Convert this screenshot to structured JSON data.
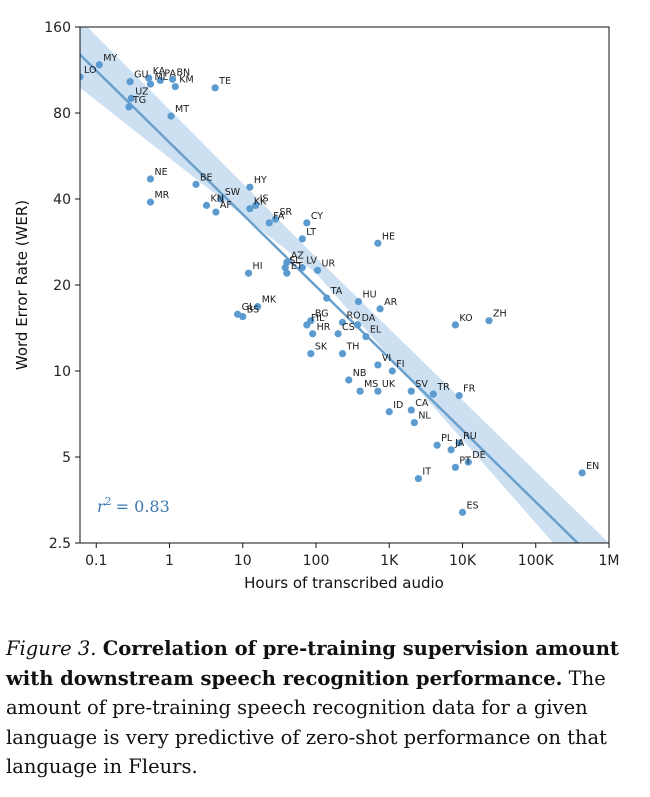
{
  "chart_data": {
    "type": "scatter",
    "xlabel": "Hours of transcribed audio",
    "ylabel": "Word Error Rate (WER)",
    "x_scale": "log",
    "y_scale": "log",
    "xlim": [
      0.06,
      1000000
    ],
    "ylim": [
      2.5,
      160
    ],
    "x_ticks": [
      {
        "value": 0.1,
        "label": "0.1"
      },
      {
        "value": 1,
        "label": "1"
      },
      {
        "value": 10,
        "label": "10"
      },
      {
        "value": 100,
        "label": "100"
      },
      {
        "value": 1000,
        "label": "1K"
      },
      {
        "value": 10000,
        "label": "10K"
      },
      {
        "value": 100000,
        "label": "100K"
      },
      {
        "value": 1000000,
        "label": "1M"
      }
    ],
    "y_ticks": [
      {
        "value": 2.5,
        "label": "2.5"
      },
      {
        "value": 5,
        "label": "5"
      },
      {
        "value": 10,
        "label": "10"
      },
      {
        "value": 20,
        "label": "20"
      },
      {
        "value": 40,
        "label": "40"
      },
      {
        "value": 80,
        "label": "80"
      },
      {
        "value": 160,
        "label": "160"
      }
    ],
    "fit_line": [
      {
        "x": 0.06,
        "y": 128
      },
      {
        "x": 1000000,
        "y": 1.95
      }
    ],
    "confidence_band": {
      "upper": [
        {
          "x": 0.06,
          "y": 170
        },
        {
          "x": 100,
          "y": 25
        },
        {
          "x": 1000000,
          "y": 2.5
        }
      ],
      "lower": [
        {
          "x": 0.06,
          "y": 98
        },
        {
          "x": 100,
          "y": 22
        },
        {
          "x": 1000000,
          "y": 1.5
        }
      ]
    },
    "annotation": {
      "text": "= 0.83",
      "symbol": "r",
      "superscript": "2"
    },
    "colors": {
      "point": "#5b9bd0",
      "line": "#6aa0cc",
      "band": "#bcd6ee",
      "label": "#3a78b0"
    },
    "points": [
      {
        "label": "MY",
        "x": 0.11,
        "y": 118
      },
      {
        "label": "LO",
        "x": 0.06,
        "y": 107
      },
      {
        "label": "GU",
        "x": 0.29,
        "y": 103
      },
      {
        "label": "KA",
        "x": 0.52,
        "y": 106
      },
      {
        "label": "PA",
        "x": 0.75,
        "y": 104
      },
      {
        "label": "BN",
        "x": 1.1,
        "y": 105
      },
      {
        "label": "ML",
        "x": 0.55,
        "y": 101
      },
      {
        "label": "KM",
        "x": 1.2,
        "y": 99
      },
      {
        "label": "TE",
        "x": 4.2,
        "y": 98
      },
      {
        "label": "UZ",
        "x": 0.3,
        "y": 90
      },
      {
        "label": "TG",
        "x": 0.28,
        "y": 84
      },
      {
        "label": "MT",
        "x": 1.05,
        "y": 78
      },
      {
        "label": "NE",
        "x": 0.55,
        "y": 47
      },
      {
        "label": "MR",
        "x": 0.55,
        "y": 39
      },
      {
        "label": "BE",
        "x": 2.3,
        "y": 45
      },
      {
        "label": "HY",
        "x": 12.5,
        "y": 44
      },
      {
        "label": "SW",
        "x": 5.0,
        "y": 40
      },
      {
        "label": "KN",
        "x": 3.2,
        "y": 38
      },
      {
        "label": "AF",
        "x": 4.3,
        "y": 36
      },
      {
        "label": "IS",
        "x": 15,
        "y": 38
      },
      {
        "label": "KK",
        "x": 12.5,
        "y": 37
      },
      {
        "label": "SR",
        "x": 28,
        "y": 34
      },
      {
        "label": "FA",
        "x": 23,
        "y": 33
      },
      {
        "label": "CY",
        "x": 75,
        "y": 33
      },
      {
        "label": "LT",
        "x": 65,
        "y": 29
      },
      {
        "label": "HE",
        "x": 700,
        "y": 28
      },
      {
        "label": "HI",
        "x": 12,
        "y": 22
      },
      {
        "label": "AZ",
        "x": 40,
        "y": 24
      },
      {
        "label": "SL",
        "x": 38,
        "y": 23
      },
      {
        "label": "LV",
        "x": 65,
        "y": 23
      },
      {
        "label": "UR",
        "x": 105,
        "y": 22.5
      },
      {
        "label": "ET",
        "x": 40,
        "y": 22
      },
      {
        "label": "TA",
        "x": 140,
        "y": 18
      },
      {
        "label": "HU",
        "x": 380,
        "y": 17.5
      },
      {
        "label": "AR",
        "x": 750,
        "y": 16.5
      },
      {
        "label": "MK",
        "x": 16,
        "y": 16.8
      },
      {
        "label": "GL",
        "x": 8.5,
        "y": 15.8
      },
      {
        "label": "BS",
        "x": 10,
        "y": 15.5
      },
      {
        "label": "BG",
        "x": 85,
        "y": 15
      },
      {
        "label": "FIL",
        "x": 75,
        "y": 14.5
      },
      {
        "label": "RO",
        "x": 230,
        "y": 14.8
      },
      {
        "label": "DA",
        "x": 370,
        "y": 14.5
      },
      {
        "label": "KO",
        "x": 8000,
        "y": 14.5
      },
      {
        "label": "ZH",
        "x": 23000,
        "y": 15
      },
      {
        "label": "HR",
        "x": 90,
        "y": 13.5
      },
      {
        "label": "CS",
        "x": 200,
        "y": 13.5
      },
      {
        "label": "EL",
        "x": 480,
        "y": 13.2
      },
      {
        "label": "SK",
        "x": 85,
        "y": 11.5
      },
      {
        "label": "TH",
        "x": 230,
        "y": 11.5
      },
      {
        "label": "VI",
        "x": 700,
        "y": 10.5
      },
      {
        "label": "FI",
        "x": 1100,
        "y": 10.0
      },
      {
        "label": "NB",
        "x": 280,
        "y": 9.3
      },
      {
        "label": "MS",
        "x": 400,
        "y": 8.5
      },
      {
        "label": "UK",
        "x": 700,
        "y": 8.5
      },
      {
        "label": "SV",
        "x": 2000,
        "y": 8.5
      },
      {
        "label": "TR",
        "x": 4000,
        "y": 8.3
      },
      {
        "label": "FR",
        "x": 9000,
        "y": 8.2
      },
      {
        "label": "ID",
        "x": 1000,
        "y": 7.2
      },
      {
        "label": "CA",
        "x": 2000,
        "y": 7.3
      },
      {
        "label": "NL",
        "x": 2200,
        "y": 6.6
      },
      {
        "label": "PL",
        "x": 4500,
        "y": 5.5
      },
      {
        "label": "JA",
        "x": 7000,
        "y": 5.3
      },
      {
        "label": "RU",
        "x": 9000,
        "y": 5.6
      },
      {
        "label": "PT",
        "x": 8000,
        "y": 4.6
      },
      {
        "label": "DE",
        "x": 12000,
        "y": 4.8
      },
      {
        "label": "IT",
        "x": 2500,
        "y": 4.2
      },
      {
        "label": "EN",
        "x": 430000,
        "y": 4.4
      },
      {
        "label": "ES",
        "x": 10000,
        "y": 3.2
      }
    ]
  },
  "caption": {
    "figure": "Figure 3.",
    "title": "Correlation of pre-training supervision amount with downstream speech recognition performance.",
    "body": "The amount of pre-training speech recognition data for a given language is very predictive of zero-shot performance on that language in Fleurs."
  }
}
